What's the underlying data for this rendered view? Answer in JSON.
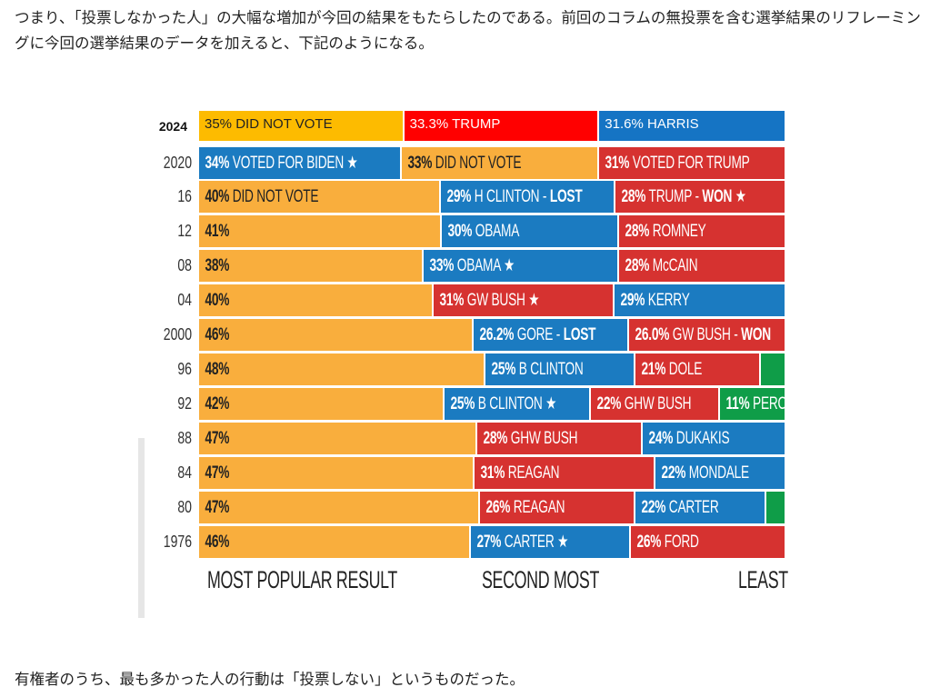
{
  "text_top": "つまり、「投票しなかった人」の大幅な増加が今回の結果をもたらしたのである。前回のコラムの無投票を含む選挙結果のリフレーミングに今回の選挙結果のデータを加えると、下記のようになる。",
  "text_bottom": "有権者のうち、最も多かった人の行動は「投票しない」というものだった。",
  "colors": {
    "did_not_vote": "#f9ae3d",
    "democrat": "#1b7bc1",
    "republican": "#d63230",
    "third_party": "#0f9d48",
    "did_not_vote_2024": "#fdbb00",
    "republican_2024": "#ff0000",
    "democrat_2024": "#1574c4",
    "text_dark": "#222222",
    "text_light": "#ffffff"
  },
  "chart_data": {
    "type": "bar",
    "orientation": "horizontal-stacked",
    "x_labels": [
      "MOST POPULAR RESULT",
      "SECOND MOST",
      "LEAST"
    ],
    "rows": [
      {
        "year": "2024",
        "segments": [
          {
            "value": 35,
            "pct": "35%",
            "text": " DID NOT VOTE",
            "kind": "did_not_vote_2024"
          },
          {
            "value": 33.3,
            "pct": "33.3%",
            "text": " TRUMP",
            "kind": "republican_2024"
          },
          {
            "value": 31.6,
            "pct": "31.6%",
            "text": " HARRIS",
            "kind": "democrat_2024"
          }
        ]
      },
      {
        "year": "2020",
        "segments": [
          {
            "value": 34,
            "pct": "34%",
            "text": " VOTED FOR BIDEN ★",
            "kind": "democrat"
          },
          {
            "value": 33,
            "pct": "33%",
            "text": " DID NOT VOTE",
            "kind": "did_not_vote"
          },
          {
            "value": 31,
            "pct": "31%",
            "text": " VOTED FOR TRUMP",
            "kind": "republican"
          }
        ]
      },
      {
        "year": "16",
        "segments": [
          {
            "value": 40,
            "pct": "40%",
            "text": " DID NOT VOTE",
            "kind": "did_not_vote"
          },
          {
            "value": 29,
            "pct": "29%",
            "text": " H CLINTON - ",
            "strong": "LOST",
            "kind": "democrat"
          },
          {
            "value": 28,
            "pct": "28%",
            "text": " TRUMP - ",
            "strong": "WON",
            "after": " ★",
            "kind": "republican"
          }
        ]
      },
      {
        "year": "12",
        "segments": [
          {
            "value": 41,
            "pct": "41%",
            "text": "",
            "kind": "did_not_vote"
          },
          {
            "value": 30,
            "pct": "30%",
            "text": " OBAMA",
            "kind": "democrat"
          },
          {
            "value": 28,
            "pct": "28%",
            "text": " ROMNEY",
            "kind": "republican"
          }
        ]
      },
      {
        "year": "08",
        "segments": [
          {
            "value": 38,
            "pct": "38%",
            "text": "",
            "kind": "did_not_vote"
          },
          {
            "value": 33,
            "pct": "33%",
            "text": " OBAMA ★",
            "kind": "democrat"
          },
          {
            "value": 28,
            "pct": "28%",
            "text": " McCAIN",
            "kind": "republican"
          }
        ]
      },
      {
        "year": "04",
        "segments": [
          {
            "value": 40,
            "pct": "40%",
            "text": "",
            "kind": "did_not_vote"
          },
          {
            "value": 31,
            "pct": "31%",
            "text": " GW BUSH ★",
            "kind": "republican"
          },
          {
            "value": 29,
            "pct": "29%",
            "text": " KERRY",
            "kind": "democrat"
          }
        ]
      },
      {
        "year": "2000",
        "segments": [
          {
            "value": 46,
            "pct": "46%",
            "text": "",
            "kind": "did_not_vote"
          },
          {
            "value": 26.2,
            "pct": "26.2%",
            "text": " GORE - ",
            "strong": "LOST",
            "kind": "democrat"
          },
          {
            "value": 26.0,
            "pct": "26.0%",
            "text": " GW BUSH - ",
            "strong": "WON",
            "kind": "republican"
          }
        ]
      },
      {
        "year": "96",
        "segments": [
          {
            "value": 48,
            "pct": "48%",
            "text": "",
            "kind": "did_not_vote"
          },
          {
            "value": 25,
            "pct": "25%",
            "text": " B CLINTON",
            "kind": "democrat"
          },
          {
            "value": 21,
            "pct": "21%",
            "text": " DOLE",
            "kind": "republican"
          },
          {
            "value": 4,
            "pct": "",
            "text": "",
            "kind": "third_party"
          }
        ]
      },
      {
        "year": "92",
        "segments": [
          {
            "value": 42,
            "pct": "42%",
            "text": "",
            "kind": "did_not_vote"
          },
          {
            "value": 25,
            "pct": "25%",
            "text": " B CLINTON ★",
            "kind": "democrat"
          },
          {
            "value": 22,
            "pct": "22%",
            "text": " GHW BUSH",
            "kind": "republican"
          },
          {
            "value": 11,
            "pct": "11%",
            "text": " PEROT",
            "kind": "third_party"
          }
        ]
      },
      {
        "year": "88",
        "segments": [
          {
            "value": 47,
            "pct": "47%",
            "text": "",
            "kind": "did_not_vote"
          },
          {
            "value": 28,
            "pct": "28%",
            "text": " GHW BUSH",
            "kind": "republican"
          },
          {
            "value": 24,
            "pct": "24%",
            "text": " DUKAKIS",
            "kind": "democrat"
          }
        ]
      },
      {
        "year": "84",
        "segments": [
          {
            "value": 47,
            "pct": "47%",
            "text": "",
            "kind": "did_not_vote"
          },
          {
            "value": 31,
            "pct": "31%",
            "text": " REAGAN",
            "kind": "republican"
          },
          {
            "value": 22,
            "pct": "22%",
            "text": " MONDALE",
            "kind": "democrat"
          }
        ]
      },
      {
        "year": "80",
        "segments": [
          {
            "value": 47,
            "pct": "47%",
            "text": "",
            "kind": "did_not_vote"
          },
          {
            "value": 26,
            "pct": "26%",
            "text": " REAGAN",
            "kind": "republican"
          },
          {
            "value": 22,
            "pct": "22%",
            "text": " CARTER",
            "kind": "democrat"
          },
          {
            "value": 3,
            "pct": "",
            "text": "",
            "kind": "third_party"
          }
        ]
      },
      {
        "year": "1976",
        "segments": [
          {
            "value": 46,
            "pct": "46%",
            "text": "",
            "kind": "did_not_vote"
          },
          {
            "value": 27,
            "pct": "27%",
            "text": " CARTER ★",
            "kind": "democrat"
          },
          {
            "value": 26,
            "pct": "26%",
            "text": " FORD",
            "kind": "republican"
          }
        ]
      }
    ]
  }
}
